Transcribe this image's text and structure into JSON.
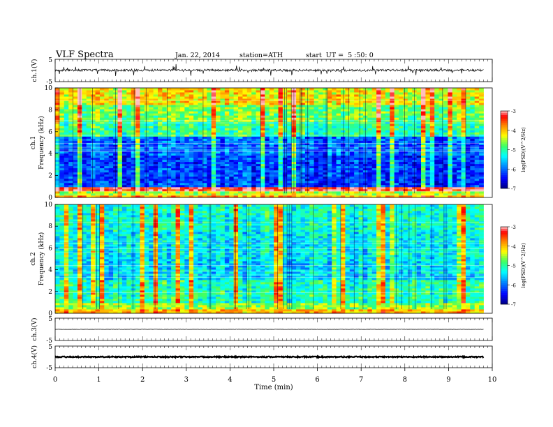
{
  "header": {
    "title": "VLF Spectra",
    "date": "Jan. 22, 2014",
    "station": "station=ATH",
    "start": "start  UT =  5 :50: 0"
  },
  "chart_data": [
    {
      "type": "line",
      "panel": "ch1-waveform",
      "ylabel": "ch.1(V)",
      "yticks": [
        "5",
        "-5"
      ],
      "ylim": [
        -5,
        5
      ],
      "xlim": [
        0,
        10
      ],
      "series": [
        {
          "x_range": [
            0,
            9.8
          ],
          "baseline": 0.1,
          "noise_amplitude": 0.5,
          "spike_amplitude": 2.5
        }
      ]
    },
    {
      "type": "heatmap",
      "panel": "ch1-spectrogram",
      "ylabel": "Frequency  (kHz)",
      "ylabel2": "ch.1",
      "ylim": [
        0,
        10
      ],
      "yticks": [
        "0",
        "2",
        "4",
        "6",
        "8",
        "10"
      ],
      "xlim": [
        0,
        10
      ],
      "data_x_end": 9.8,
      "colorbar": {
        "label": "log(PSD)(V^2/Hz)",
        "range": [
          -7,
          -3
        ],
        "ticks": [
          "-3",
          "-4",
          "-5",
          "-6",
          "-7"
        ]
      },
      "bands_logpsd": [
        {
          "f": [
            0.0,
            0.2
          ],
          "v": -3.9
        },
        {
          "f": [
            0.2,
            0.6
          ],
          "v": -4.5
        },
        {
          "f": [
            0.6,
            1.0
          ],
          "v": -3.3
        },
        {
          "f": [
            1.0,
            3.8
          ],
          "v": -6.2
        },
        {
          "f": [
            3.8,
            5.5
          ],
          "v": -6.0
        },
        {
          "f": [
            5.5,
            7.0
          ],
          "v": -5.0
        },
        {
          "f": [
            7.0,
            8.5
          ],
          "v": -4.7
        },
        {
          "f": [
            8.5,
            10.0
          ],
          "v": -4.2
        }
      ]
    },
    {
      "type": "heatmap",
      "panel": "ch2-spectrogram",
      "ylabel": "Frequency  (kHz)",
      "ylabel2": "ch.2",
      "ylim": [
        0,
        10
      ],
      "yticks": [
        "0",
        "2",
        "4",
        "6",
        "8",
        "10"
      ],
      "xlim": [
        0,
        10
      ],
      "data_x_end": 9.8,
      "colorbar": {
        "label": "log(PSD)(V^2/Hz)",
        "range": [
          -7,
          -3
        ],
        "ticks": [
          "-3",
          "-4",
          "-5",
          "-6",
          "-7"
        ]
      },
      "bands_logpsd": [
        {
          "f": [
            0.0,
            0.3
          ],
          "v": -4.0
        },
        {
          "f": [
            0.3,
            1.0
          ],
          "v": -4.6
        },
        {
          "f": [
            1.0,
            3.0
          ],
          "v": -5.1
        },
        {
          "f": [
            3.0,
            5.0
          ],
          "v": -5.5
        },
        {
          "f": [
            5.0,
            7.5
          ],
          "v": -5.4
        },
        {
          "f": [
            7.5,
            10.0
          ],
          "v": -5.2
        }
      ]
    },
    {
      "type": "line",
      "panel": "ch3-waveform",
      "ylabel": "ch.3(V)",
      "yticks": [
        "5",
        "-5"
      ],
      "ylim": [
        -5,
        5
      ],
      "xlim": [
        0,
        10
      ],
      "series": [
        {
          "x_range": [
            0,
            9.8
          ],
          "baseline": 0.0,
          "noise_amplitude": 0.06,
          "spike_amplitude": 0
        }
      ]
    },
    {
      "type": "line",
      "panel": "ch4-waveform",
      "ylabel": "ch.4(V)",
      "yticks": [
        "5",
        "-5"
      ],
      "ylim": [
        -5,
        5
      ],
      "xlim": [
        0,
        10
      ],
      "series": [
        {
          "x_range": [
            0,
            9.8
          ],
          "baseline": 0.0,
          "noise_amplitude": 0.25,
          "spike_amplitude": 0
        }
      ]
    }
  ],
  "xaxis": {
    "label": "Time  (min)",
    "ticks": [
      "0",
      "1",
      "2",
      "3",
      "4",
      "5",
      "6",
      "7",
      "8",
      "9",
      "10"
    ]
  }
}
